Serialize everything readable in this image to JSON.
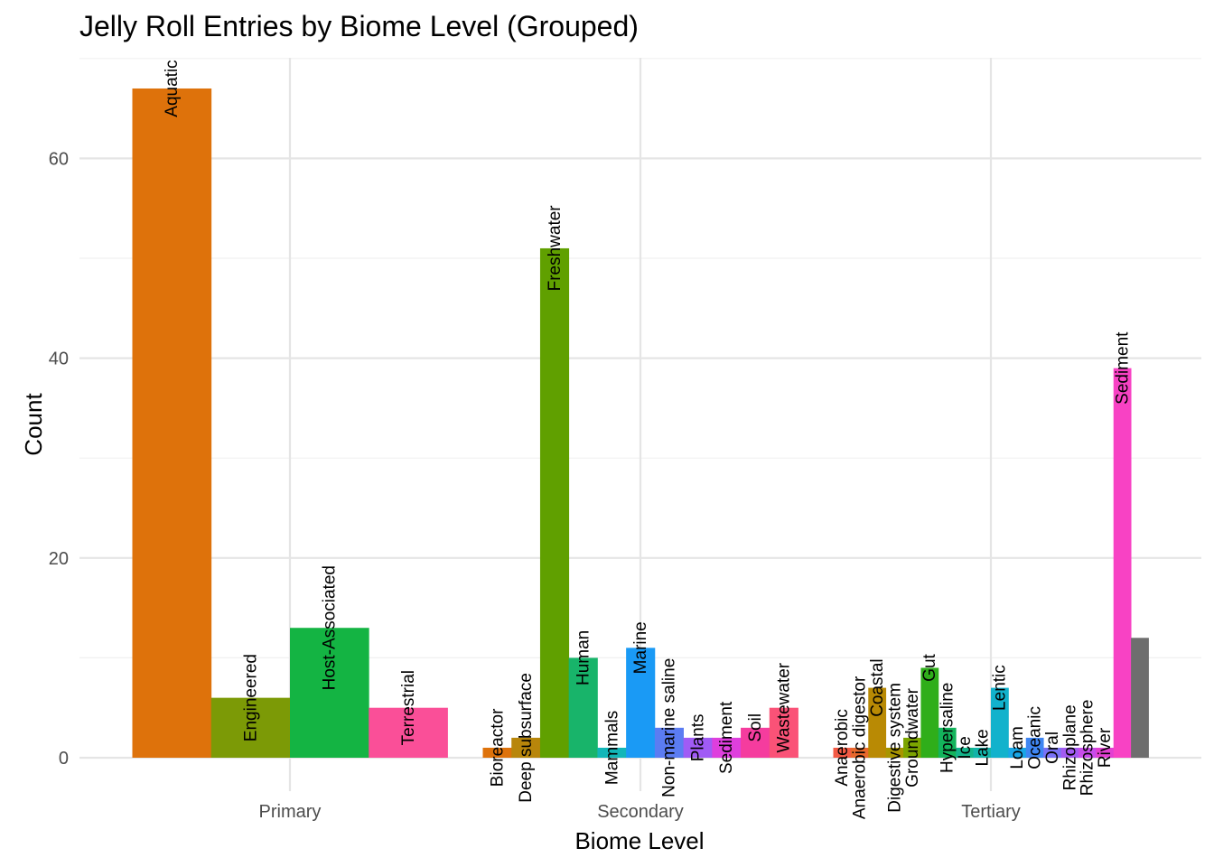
{
  "chart_data": {
    "type": "bar",
    "title": "Jelly Roll Entries by Biome Level (Grouped)",
    "xlabel": "Biome Level",
    "ylabel": "Count",
    "ylim": [
      -6,
      70
    ],
    "y_ticks": [
      0,
      20,
      40,
      60
    ],
    "grid": true,
    "legend": "none",
    "categories": [
      "Primary",
      "Secondary",
      "Tertiary"
    ],
    "groups": [
      {
        "category": "Primary",
        "bars": [
          {
            "label": "Aquatic",
            "value": 67,
            "color": "#DE720B"
          },
          {
            "label": "Engineered",
            "value": 6,
            "color": "#7C9A06"
          },
          {
            "label": "Host-Associated",
            "value": 13,
            "color": "#14B443"
          },
          {
            "label": "Terrestrial",
            "value": 5,
            "color": "#FA4F98"
          }
        ]
      },
      {
        "category": "Secondary",
        "bars": [
          {
            "label": "Bioreactor",
            "value": 1,
            "color": "#DE720B"
          },
          {
            "label": "Deep subsurface",
            "value": 2,
            "color": "#B8860B"
          },
          {
            "label": "Freshwater",
            "value": 51,
            "color": "#60A000"
          },
          {
            "label": "Human",
            "value": 10,
            "color": "#18B46A"
          },
          {
            "label": "Mammals",
            "value": 1,
            "color": "#12B6B8"
          },
          {
            "label": "Marine",
            "value": 11,
            "color": "#1A9AF5"
          },
          {
            "label": "Non-marine saline",
            "value": 3,
            "color": "#5B7CF2"
          },
          {
            "label": "Plants",
            "value": 2,
            "color": "#A05BF5"
          },
          {
            "label": "Sediment",
            "value": 2,
            "color": "#DE3FDD"
          },
          {
            "label": "Soil",
            "value": 3,
            "color": "#F53C9E"
          },
          {
            "label": "Wastewater",
            "value": 5,
            "color": "#FA5277"
          }
        ]
      },
      {
        "category": "Tertiary",
        "bars": [
          {
            "label": "Anaerobic",
            "value": 1,
            "color": "#F25A45"
          },
          {
            "label": "Anaerobic digestor",
            "value": 1,
            "color": "#E8682C"
          },
          {
            "label": "Coastal",
            "value": 7,
            "color": "#B98A04"
          },
          {
            "label": "Digestive system",
            "value": 1,
            "color": "#A89500"
          },
          {
            "label": "Groundwater",
            "value": 2,
            "color": "#7CA400"
          },
          {
            "label": "Gut",
            "value": 9,
            "color": "#2FAE1A"
          },
          {
            "label": "Hypersaline",
            "value": 3,
            "color": "#14B45C"
          },
          {
            "label": "Ice",
            "value": 1,
            "color": "#14B48A"
          },
          {
            "label": "Lake",
            "value": 1,
            "color": "#12B3A8"
          },
          {
            "label": "Lentic",
            "value": 7,
            "color": "#12B2CC"
          },
          {
            "label": "Loam",
            "value": 1,
            "color": "#18A6E6"
          },
          {
            "label": "Oceanic",
            "value": 2,
            "color": "#3F86F2"
          },
          {
            "label": "Oral",
            "value": 1,
            "color": "#7A72F5"
          },
          {
            "label": "Rhizoplane",
            "value": 1,
            "color": "#A25BF0"
          },
          {
            "label": "Rhizosphere",
            "value": 1,
            "color": "#C84CEA"
          },
          {
            "label": "River",
            "value": 1,
            "color": "#E23FD2"
          },
          {
            "label": "Sediment",
            "value": 39,
            "color": "#F842C4"
          },
          {
            "label": "",
            "value": 12,
            "color": "#6E6E6E"
          }
        ]
      }
    ]
  }
}
